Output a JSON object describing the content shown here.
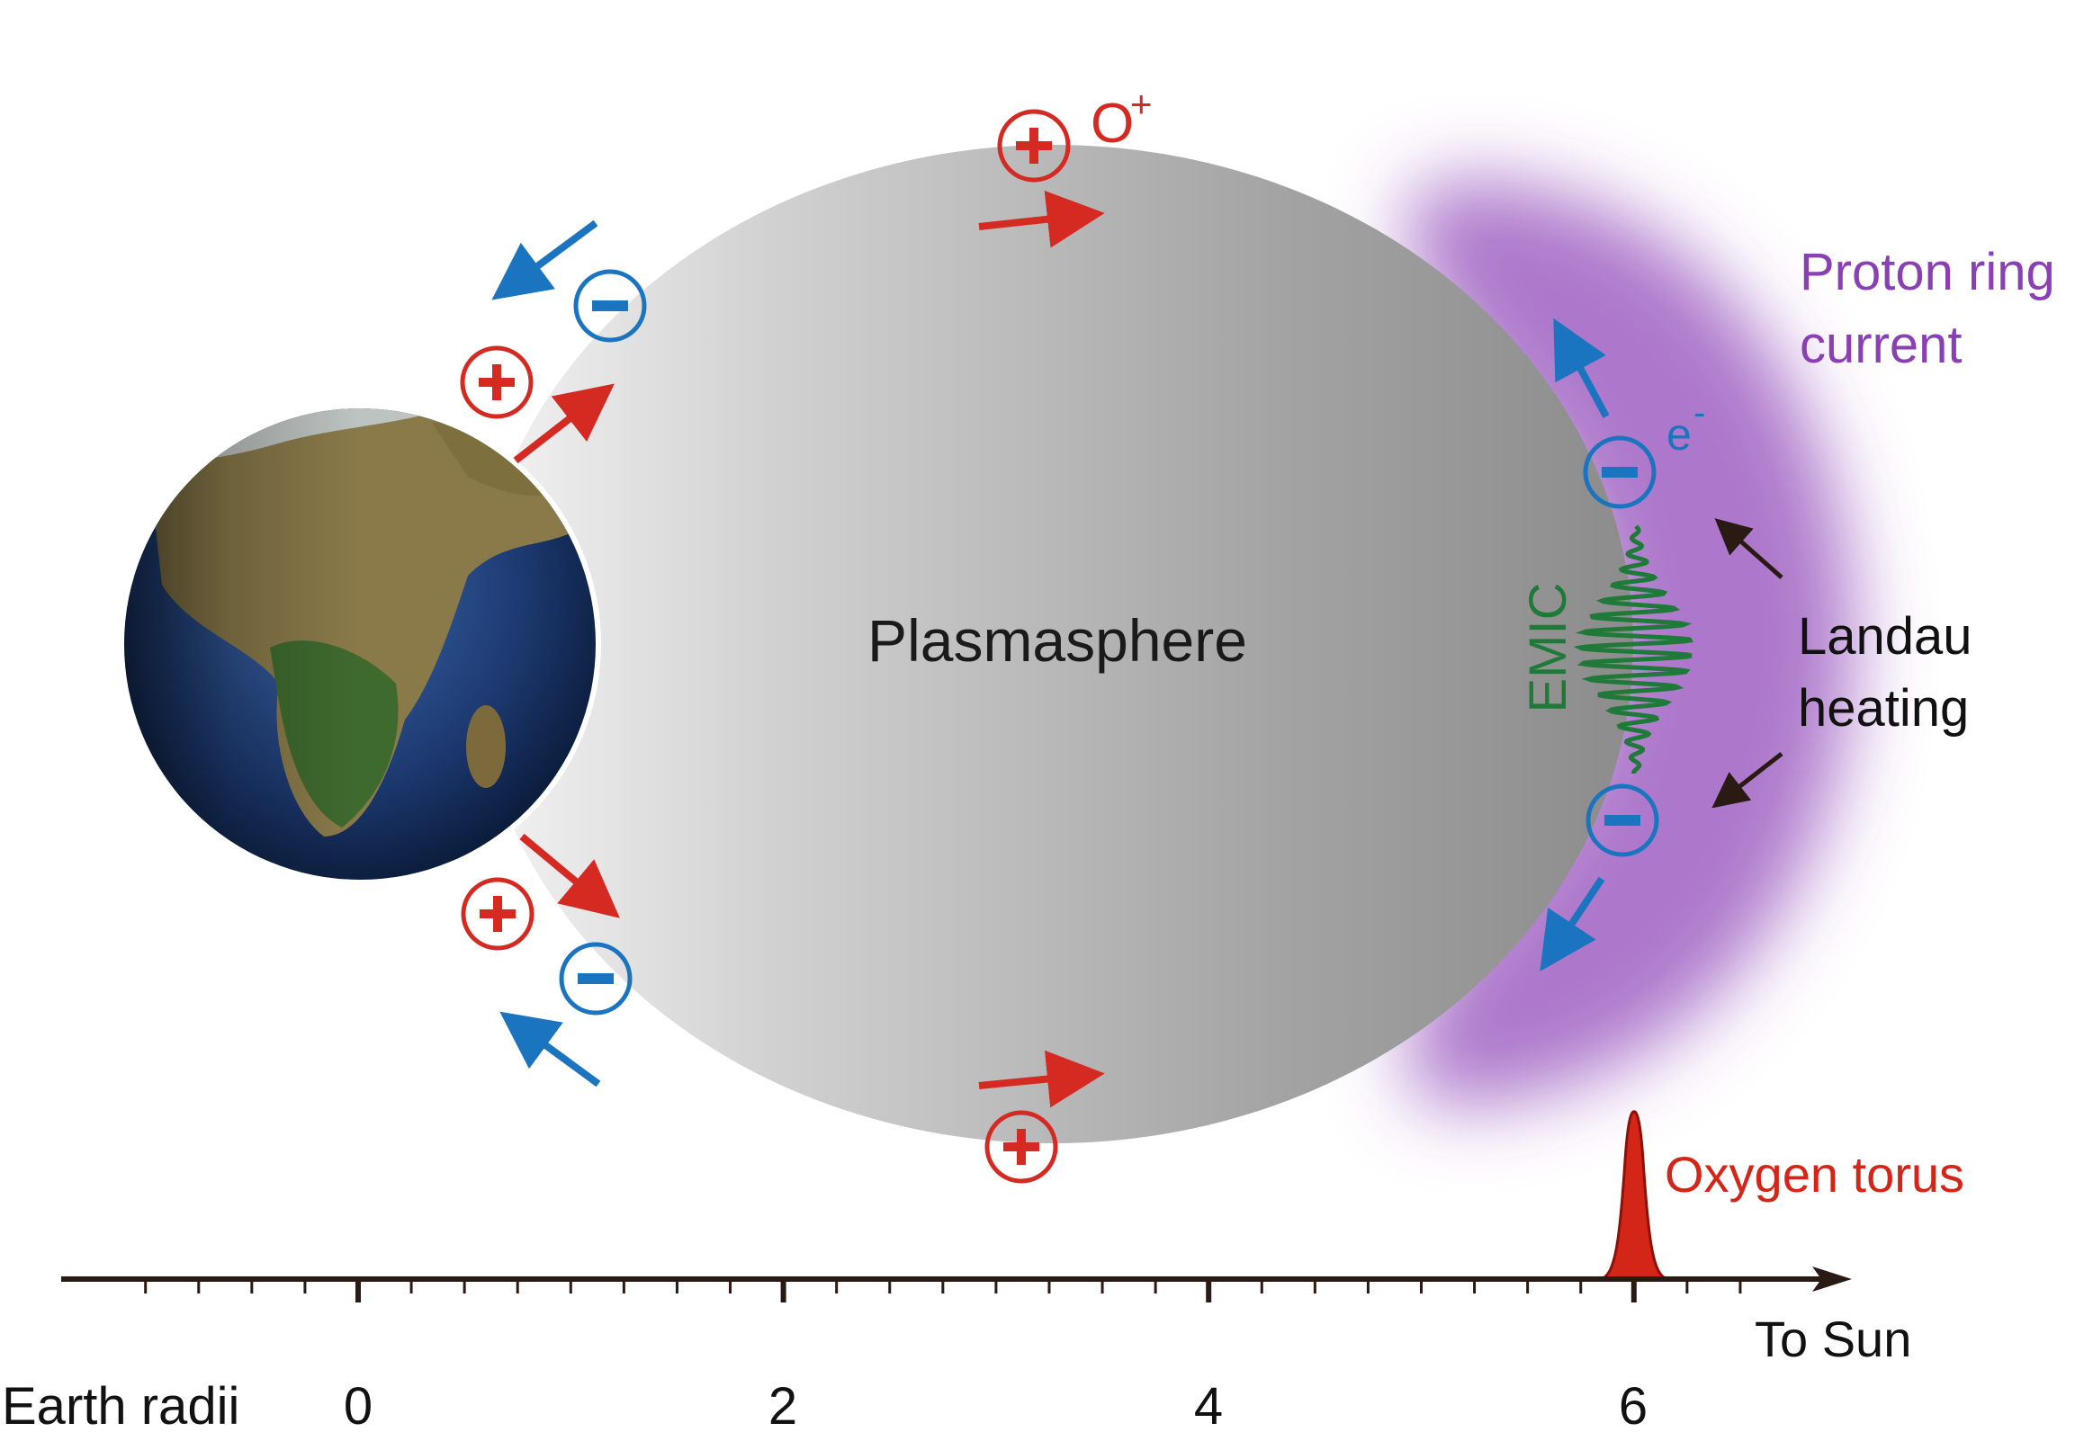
{
  "labels": {
    "plasmasphere": "Plasmasphere",
    "oxygen_ion": "O",
    "oxygen_ion_charge": "+",
    "proton_ring_line1": "Proton ring",
    "proton_ring_line2": "current",
    "electron": "e",
    "electron_charge": "-",
    "emic": "EMIC",
    "landau_line1": "Landau",
    "landau_line2": "heating",
    "oxygen_torus": "Oxygen torus",
    "to_sun": "To Sun",
    "axis_title": "Earth radii"
  },
  "axis": {
    "tick_labels": [
      "0",
      "2",
      "4",
      "6"
    ]
  },
  "icons": {
    "planet": "earth-icon",
    "positive_ion": "plus-circle-icon",
    "negative_ion": "minus-circle-icon"
  },
  "colors": {
    "ion_red": "#d42a22",
    "electron_blue": "#1b74bf",
    "ring_current_purple": "#8a3fb5",
    "emic_green": "#1f7a3a",
    "torus_red": "#d32618",
    "arrow_dark": "#2a1a14"
  }
}
